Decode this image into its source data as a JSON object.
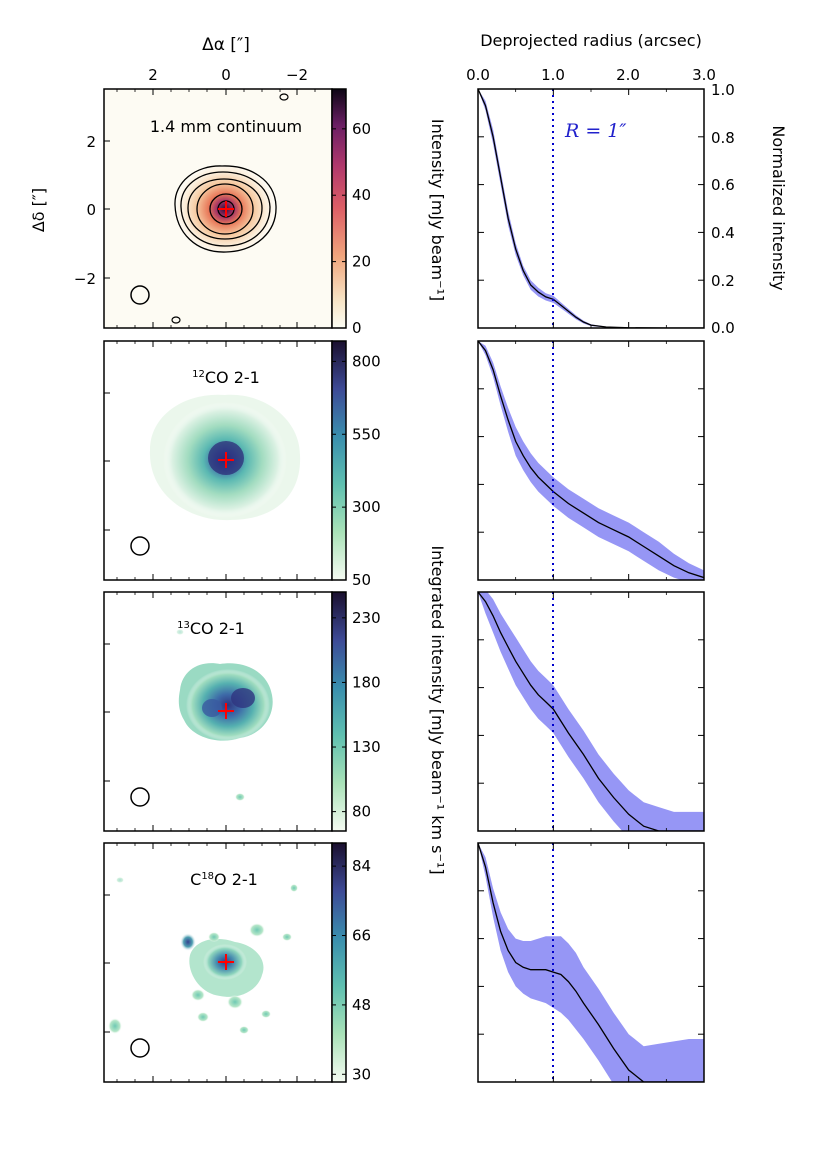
{
  "chart_data": {
    "type": "multi-panel",
    "map_axes": {
      "xlabel": "Δα [″]",
      "ylabel": "Δδ [″]",
      "xticks": [
        "2",
        "0",
        "−2"
      ],
      "yticks": [
        "2",
        "0",
        "−2"
      ]
    },
    "profile_axes": {
      "xlabel_top": "Deprojected radius (arcsec)",
      "xticks": [
        "0.0",
        "1.0",
        "2.0",
        "3.0"
      ],
      "xlim": [
        0,
        3
      ],
      "right_ylabel": "Normalized intensity",
      "right_yticks": [
        "0.0",
        "0.2",
        "0.4",
        "0.6",
        "0.8",
        "1.0"
      ],
      "ylim": [
        0,
        1
      ],
      "vline_x": 1.0,
      "vline_label": "R = 1″"
    },
    "cbar_labels": {
      "continuum": "Intensity [mJy beam⁻¹]",
      "lines": "Integrated intensity [mJy beam⁻¹ km s⁻¹]"
    },
    "panels": [
      {
        "id": "continuum",
        "title": "1.4 mm continuum",
        "cmap": "magma-like",
        "cbar_ticks": [
          "0",
          "20",
          "40",
          "60"
        ],
        "cbar_range": [
          0,
          72
        ],
        "profile": {
          "r": [
            0,
            0.1,
            0.2,
            0.3,
            0.4,
            0.5,
            0.6,
            0.7,
            0.8,
            0.9,
            1.0,
            1.1,
            1.2,
            1.3,
            1.4,
            1.5,
            1.7,
            2.0,
            2.5,
            3.0
          ],
          "mean": [
            1.0,
            0.93,
            0.8,
            0.63,
            0.46,
            0.33,
            0.24,
            0.18,
            0.15,
            0.13,
            0.12,
            0.095,
            0.07,
            0.045,
            0.025,
            0.012,
            0.004,
            0.001,
            0.0,
            0.0
          ],
          "err": [
            0.0,
            0.02,
            0.03,
            0.03,
            0.03,
            0.025,
            0.02,
            0.02,
            0.018,
            0.015,
            0.015,
            0.012,
            0.01,
            0.008,
            0.006,
            0.004,
            0.002,
            0.001,
            0.0,
            0.0
          ]
        }
      },
      {
        "id": "12co",
        "title": "¹²CO 2-1",
        "title_sup": "12",
        "title_main": "CO 2-1",
        "cmap": "viridis-like",
        "cbar_ticks": [
          "50",
          "300",
          "550",
          "800"
        ],
        "cbar_range": [
          50,
          870
        ],
        "profile": {
          "r": [
            0,
            0.1,
            0.2,
            0.3,
            0.4,
            0.5,
            0.6,
            0.7,
            0.8,
            0.9,
            1.0,
            1.2,
            1.4,
            1.6,
            1.8,
            2.0,
            2.2,
            2.4,
            2.6,
            2.8,
            3.0
          ],
          "mean": [
            1.0,
            0.96,
            0.88,
            0.77,
            0.67,
            0.58,
            0.52,
            0.47,
            0.43,
            0.4,
            0.37,
            0.32,
            0.28,
            0.24,
            0.21,
            0.18,
            0.14,
            0.1,
            0.06,
            0.03,
            0.01
          ],
          "err": [
            0.0,
            0.02,
            0.03,
            0.04,
            0.05,
            0.06,
            0.06,
            0.06,
            0.06,
            0.06,
            0.06,
            0.06,
            0.06,
            0.06,
            0.06,
            0.06,
            0.06,
            0.06,
            0.05,
            0.04,
            0.03
          ]
        }
      },
      {
        "id": "13co",
        "title": "¹³CO 2-1",
        "title_sup": "13",
        "title_main": "CO 2-1",
        "cmap": "viridis-like",
        "cbar_ticks": [
          "80",
          "130",
          "180",
          "230"
        ],
        "cbar_range": [
          65,
          250
        ],
        "profile": {
          "r": [
            0,
            0.1,
            0.2,
            0.3,
            0.4,
            0.5,
            0.6,
            0.7,
            0.8,
            0.9,
            1.0,
            1.1,
            1.2,
            1.4,
            1.6,
            1.8,
            2.0,
            2.2,
            2.4,
            2.6,
            2.8,
            3.0
          ],
          "mean": [
            1.0,
            0.96,
            0.9,
            0.83,
            0.77,
            0.71,
            0.66,
            0.61,
            0.57,
            0.54,
            0.51,
            0.46,
            0.41,
            0.32,
            0.22,
            0.14,
            0.07,
            0.02,
            0.0,
            0.0,
            0.0,
            0.0
          ],
          "err": [
            0.0,
            0.05,
            0.07,
            0.08,
            0.09,
            0.1,
            0.1,
            0.1,
            0.1,
            0.1,
            0.1,
            0.1,
            0.1,
            0.1,
            0.1,
            0.1,
            0.1,
            0.1,
            0.1,
            0.08,
            0.08,
            0.08
          ]
        }
      },
      {
        "id": "c18o",
        "title": "C¹⁸O 2-1",
        "title_pre": "C",
        "title_sup": "18",
        "title_main": "O 2-1",
        "cmap": "viridis-like",
        "cbar_ticks": [
          "30",
          "48",
          "66",
          "84"
        ],
        "cbar_range": [
          28,
          90
        ],
        "profile": {
          "r": [
            0,
            0.1,
            0.2,
            0.3,
            0.4,
            0.5,
            0.6,
            0.7,
            0.8,
            0.9,
            1.0,
            1.1,
            1.2,
            1.3,
            1.4,
            1.6,
            1.8,
            2.0,
            2.2,
            2.4,
            2.6,
            2.8,
            3.0
          ],
          "mean": [
            1.0,
            0.9,
            0.75,
            0.63,
            0.55,
            0.5,
            0.48,
            0.47,
            0.47,
            0.47,
            0.46,
            0.45,
            0.42,
            0.38,
            0.33,
            0.24,
            0.14,
            0.05,
            0.0,
            0.0,
            0.0,
            0.0,
            0.0
          ],
          "err": [
            0.0,
            0.04,
            0.06,
            0.08,
            0.09,
            0.1,
            0.11,
            0.12,
            0.13,
            0.14,
            0.15,
            0.16,
            0.16,
            0.16,
            0.15,
            0.15,
            0.15,
            0.15,
            0.15,
            0.16,
            0.17,
            0.18,
            0.18
          ]
        }
      }
    ]
  }
}
